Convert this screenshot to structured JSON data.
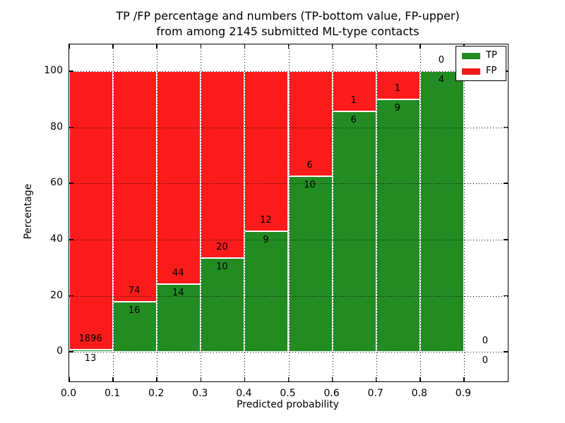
{
  "title": {
    "line1": "TP /FP percentage and numbers (TP-bottom value, FP-upper)",
    "line2": "from among 2145 submitted ML-type contacts"
  },
  "colors": {
    "tp": "#228b22",
    "fp": "#fb1b1b",
    "grid": "#000000",
    "frame": "#000000",
    "background": "#ffffff"
  },
  "legend": {
    "items": [
      {
        "label": "TP",
        "series": "tp"
      },
      {
        "label": "FP",
        "series": "fp"
      }
    ]
  },
  "chart_data": {
    "type": "bar",
    "stacked": true,
    "units": "percent",
    "title": "TP /FP percentage and numbers (TP-bottom value, FP-upper) from among 2145 submitted ML-type contacts",
    "xlabel": "Predicted probability",
    "ylabel": "Percentage",
    "xlim": [
      0.0,
      1.0
    ],
    "ylim": [
      -10.5,
      109.5
    ],
    "x_tick_values": [
      0.0,
      0.1,
      0.2,
      0.3,
      0.4,
      0.5,
      0.6,
      0.7,
      0.8,
      0.9
    ],
    "x_tick_labels": [
      "0.0",
      "0.1",
      "0.2",
      "0.3",
      "0.4",
      "0.5",
      "0.6",
      "0.7",
      "0.8",
      "0.9"
    ],
    "y_tick_values": [
      0,
      20,
      40,
      60,
      80,
      100
    ],
    "y_tick_labels": [
      "0",
      "20",
      "40",
      "60",
      "80",
      "100"
    ],
    "grid": true,
    "legend_position": "upper right",
    "series": [
      {
        "name": "TP",
        "color": "#228b22"
      },
      {
        "name": "FP",
        "color": "#fb1b1b"
      }
    ],
    "bins": [
      {
        "range": [
          0.0,
          0.1
        ],
        "tp": 13,
        "fp": 1896,
        "tp_pct": 0.68
      },
      {
        "range": [
          0.1,
          0.2
        ],
        "tp": 16,
        "fp": 74,
        "tp_pct": 17.78
      },
      {
        "range": [
          0.2,
          0.3
        ],
        "tp": 14,
        "fp": 44,
        "tp_pct": 24.14
      },
      {
        "range": [
          0.3,
          0.4
        ],
        "tp": 10,
        "fp": 20,
        "tp_pct": 33.33
      },
      {
        "range": [
          0.4,
          0.5
        ],
        "tp": 9,
        "fp": 12,
        "tp_pct": 42.86
      },
      {
        "range": [
          0.5,
          0.6
        ],
        "tp": 10,
        "fp": 6,
        "tp_pct": 62.5
      },
      {
        "range": [
          0.6,
          0.7
        ],
        "tp": 6,
        "fp": 1,
        "tp_pct": 85.71
      },
      {
        "range": [
          0.7,
          0.8
        ],
        "tp": 9,
        "fp": 1,
        "tp_pct": 90.0
      },
      {
        "range": [
          0.8,
          0.9
        ],
        "tp": 4,
        "fp": 0,
        "tp_pct": 100.0
      },
      {
        "range": [
          0.9,
          1.0
        ],
        "tp": 0,
        "fp": 0,
        "tp_pct": null
      }
    ],
    "total_contacts": 2145
  }
}
